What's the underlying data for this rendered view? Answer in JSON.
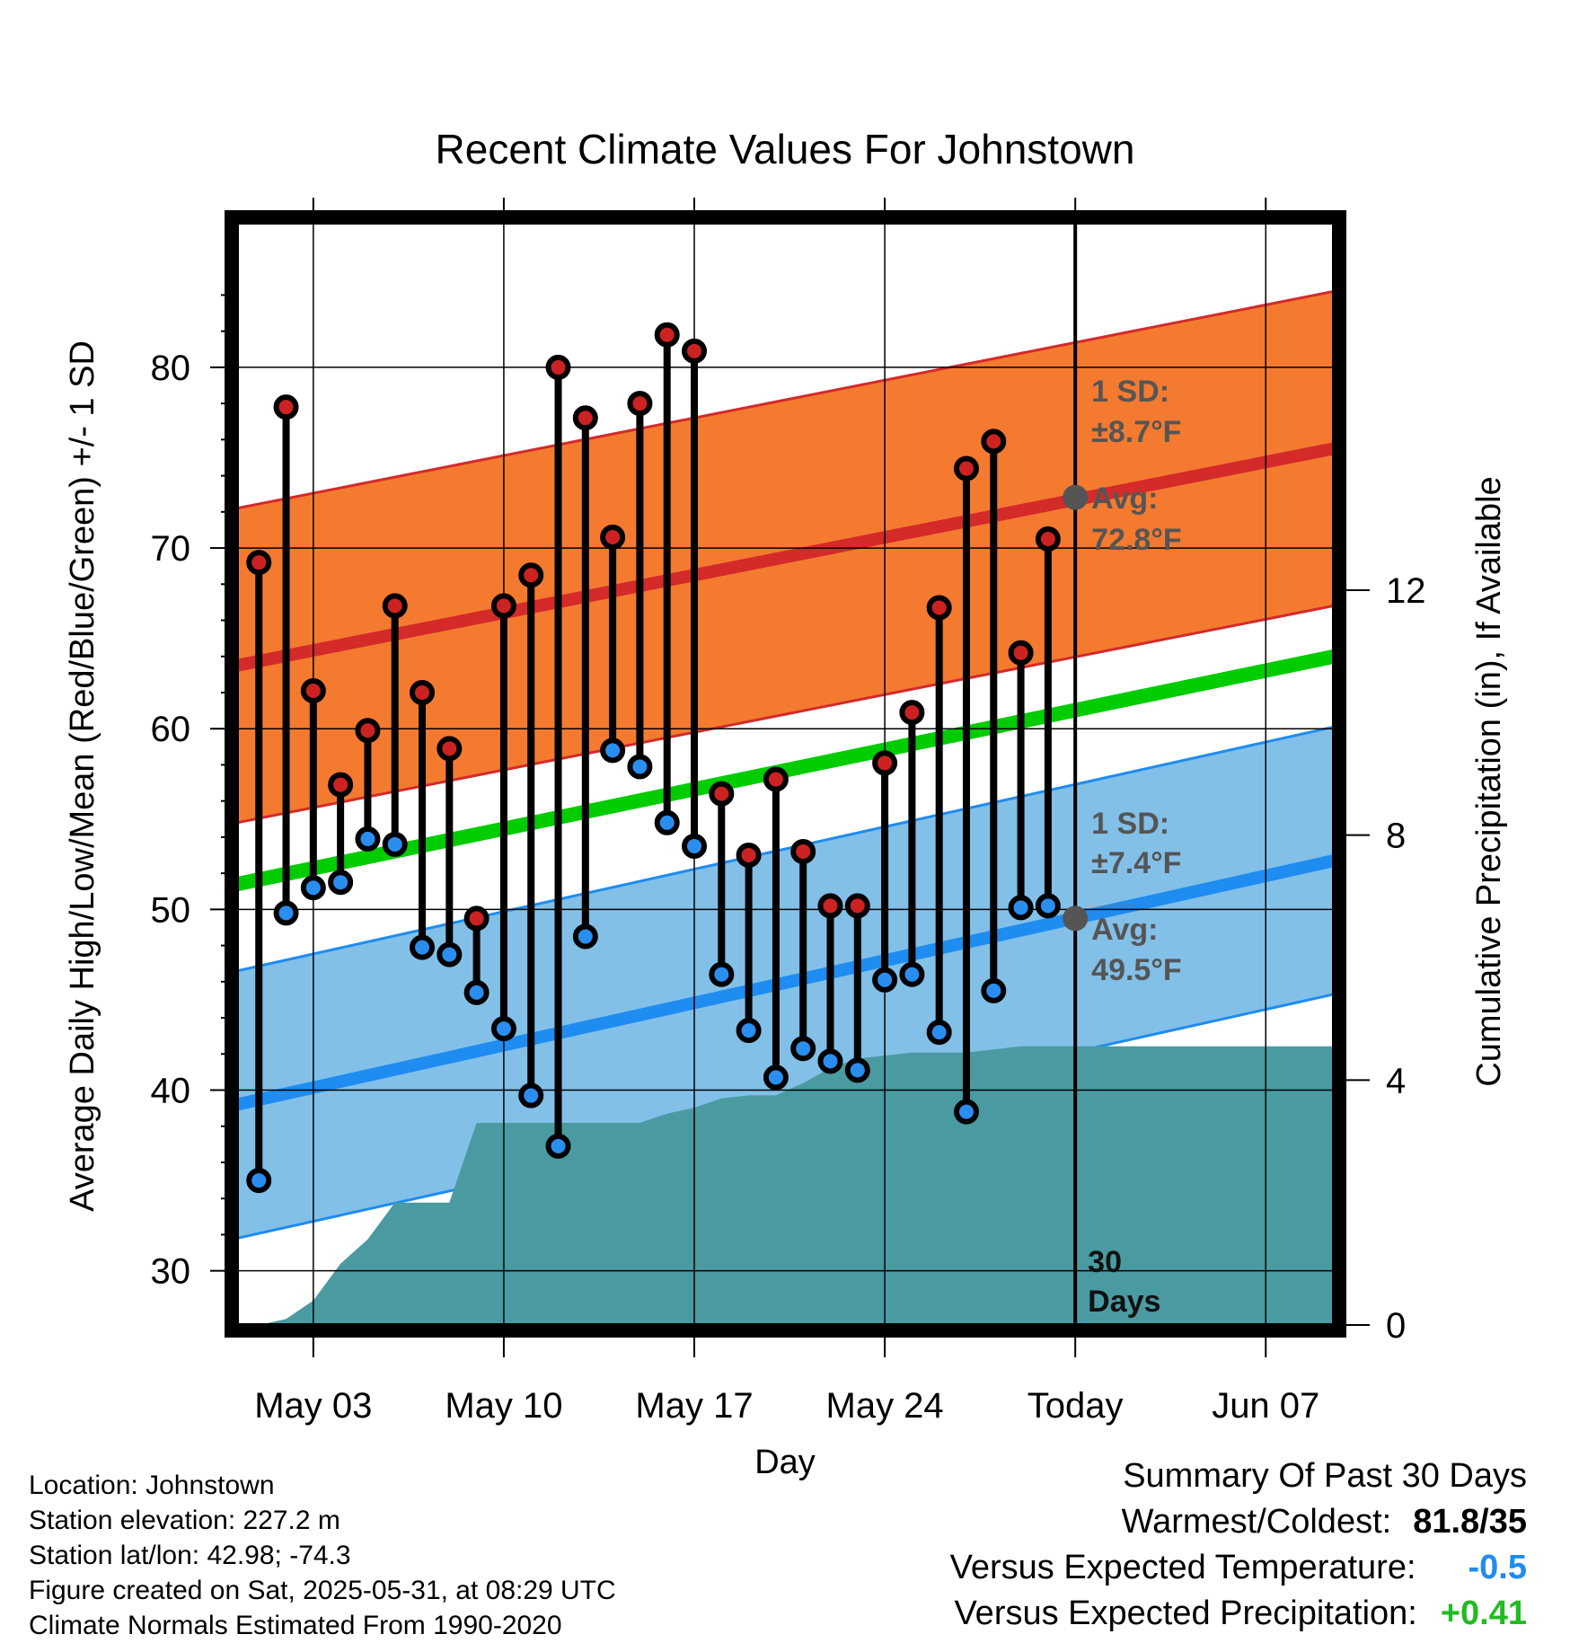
{
  "chart_data": {
    "type": "line",
    "title": "Recent Climate Values For Johnstown",
    "xlabel": "Day",
    "ylabel": "Average Daily High/Low/Mean (Red/Blue/Green) +/- 1 SD",
    "y2label": "Cumulative Precipitation (in), If Available",
    "x_tick_labels": [
      "May 03",
      "May 10",
      "May 17",
      "May 24",
      "Today",
      "Jun 07"
    ],
    "x_tick_days": [
      3,
      10,
      17,
      24,
      31,
      38
    ],
    "ylim": [
      27,
      88
    ],
    "y_ticks": [
      30,
      40,
      50,
      60,
      70,
      80
    ],
    "y2lim": [
      0,
      18
    ],
    "y2_ticks": [
      0,
      4,
      8,
      12
    ],
    "xlim": [
      0.2,
      40.5
    ],
    "today_day": 31,
    "today_label": "30 Days",
    "days": [
      1,
      2,
      3,
      4,
      5,
      6,
      7,
      8,
      9,
      10,
      11,
      12,
      13,
      14,
      15,
      16,
      17,
      18,
      19,
      20,
      21,
      22,
      23,
      24,
      25,
      26,
      27,
      28,
      29,
      30
    ],
    "highs": [
      69.2,
      77.8,
      62.1,
      56.9,
      59.9,
      66.8,
      62.0,
      58.9,
      49.5,
      66.8,
      68.5,
      80.0,
      77.2,
      70.6,
      78.0,
      81.8,
      80.9,
      56.4,
      53.0,
      57.2,
      53.2,
      50.2,
      50.2,
      58.1,
      60.9,
      66.7,
      74.4,
      75.9,
      64.2,
      70.5
    ],
    "lows": [
      35.0,
      49.8,
      51.2,
      51.5,
      53.9,
      53.6,
      47.9,
      47.5,
      45.4,
      43.4,
      39.7,
      36.9,
      48.5,
      58.8,
      57.9,
      54.8,
      53.5,
      46.4,
      43.3,
      40.7,
      42.3,
      41.6,
      41.1,
      46.1,
      46.4,
      43.2,
      38.8,
      45.5,
      50.1,
      50.2
    ],
    "normal_high": {
      "start": 63.5,
      "end": 75.5,
      "sd": 8.7,
      "avg_today": 72.8
    },
    "normal_low": {
      "start": 39.2,
      "end": 52.7,
      "sd": 7.4,
      "avg_today": 49.5
    },
    "normal_mean": {
      "start": 51.4,
      "end": 64.0
    },
    "cumulative_precip": [
      [
        0.2,
        0.0
      ],
      [
        1,
        0.0
      ],
      [
        2,
        0.1
      ],
      [
        3,
        0.4
      ],
      [
        4,
        1.0
      ],
      [
        5,
        1.4
      ],
      [
        6,
        2.0
      ],
      [
        7,
        2.0
      ],
      [
        8,
        2.0
      ],
      [
        9,
        3.3
      ],
      [
        10,
        3.3
      ],
      [
        11,
        3.3
      ],
      [
        12,
        3.3
      ],
      [
        13,
        3.3
      ],
      [
        14,
        3.3
      ],
      [
        15,
        3.3
      ],
      [
        16,
        3.45
      ],
      [
        17,
        3.55
      ],
      [
        18,
        3.7
      ],
      [
        19,
        3.75
      ],
      [
        20,
        3.75
      ],
      [
        21,
        3.95
      ],
      [
        22,
        4.2
      ],
      [
        23,
        4.35
      ],
      [
        24,
        4.4
      ],
      [
        25,
        4.45
      ],
      [
        26,
        4.45
      ],
      [
        27,
        4.45
      ],
      [
        28,
        4.5
      ],
      [
        29,
        4.55
      ],
      [
        31,
        4.55
      ],
      [
        40.5,
        4.55
      ]
    ],
    "annotations": {
      "high_sd_label": "1 SD:",
      "high_sd_value": "±8.7°F",
      "high_avg_label": "Avg:",
      "high_avg_value": "72.8°F",
      "low_sd_label": "1 SD:",
      "low_sd_value": "±7.4°F",
      "low_avg_label": "Avg:",
      "low_avg_value": "49.5°F",
      "days_line1": "30",
      "days_line2": "Days"
    },
    "colors": {
      "high_band": "#f47a30",
      "high_line": "#d42a2a",
      "low_band": "#82c0e8",
      "low_line": "#1e8cf0",
      "mean_line": "#00cc00",
      "precip_fill": "#4a9aa2",
      "high_marker": "#cc2222",
      "low_marker": "#2a8ef0",
      "avg_marker": "#555555"
    },
    "grid": true
  },
  "info": {
    "location": "Location: Johnstown",
    "elevation": "Station elevation: 227.2 m",
    "latlon": "Station lat/lon: 42.98; -74.3",
    "created": "Figure created on Sat, 2025-05-31, at 08:29 UTC",
    "normals": "Climate Normals Estimated From 1990-2020"
  },
  "summary": {
    "title": "Summary Of Past 30 Days",
    "warmest_coldest_label": "Warmest/Coldest:",
    "warmest_coldest_value": "81.8/35",
    "temp_label": "Versus Expected Temperature:",
    "temp_value": "-0.5",
    "temp_color": "#1e8cf0",
    "precip_label": "Versus Expected Precipitation:",
    "precip_value": "+0.41",
    "precip_color": "#22bb22"
  }
}
